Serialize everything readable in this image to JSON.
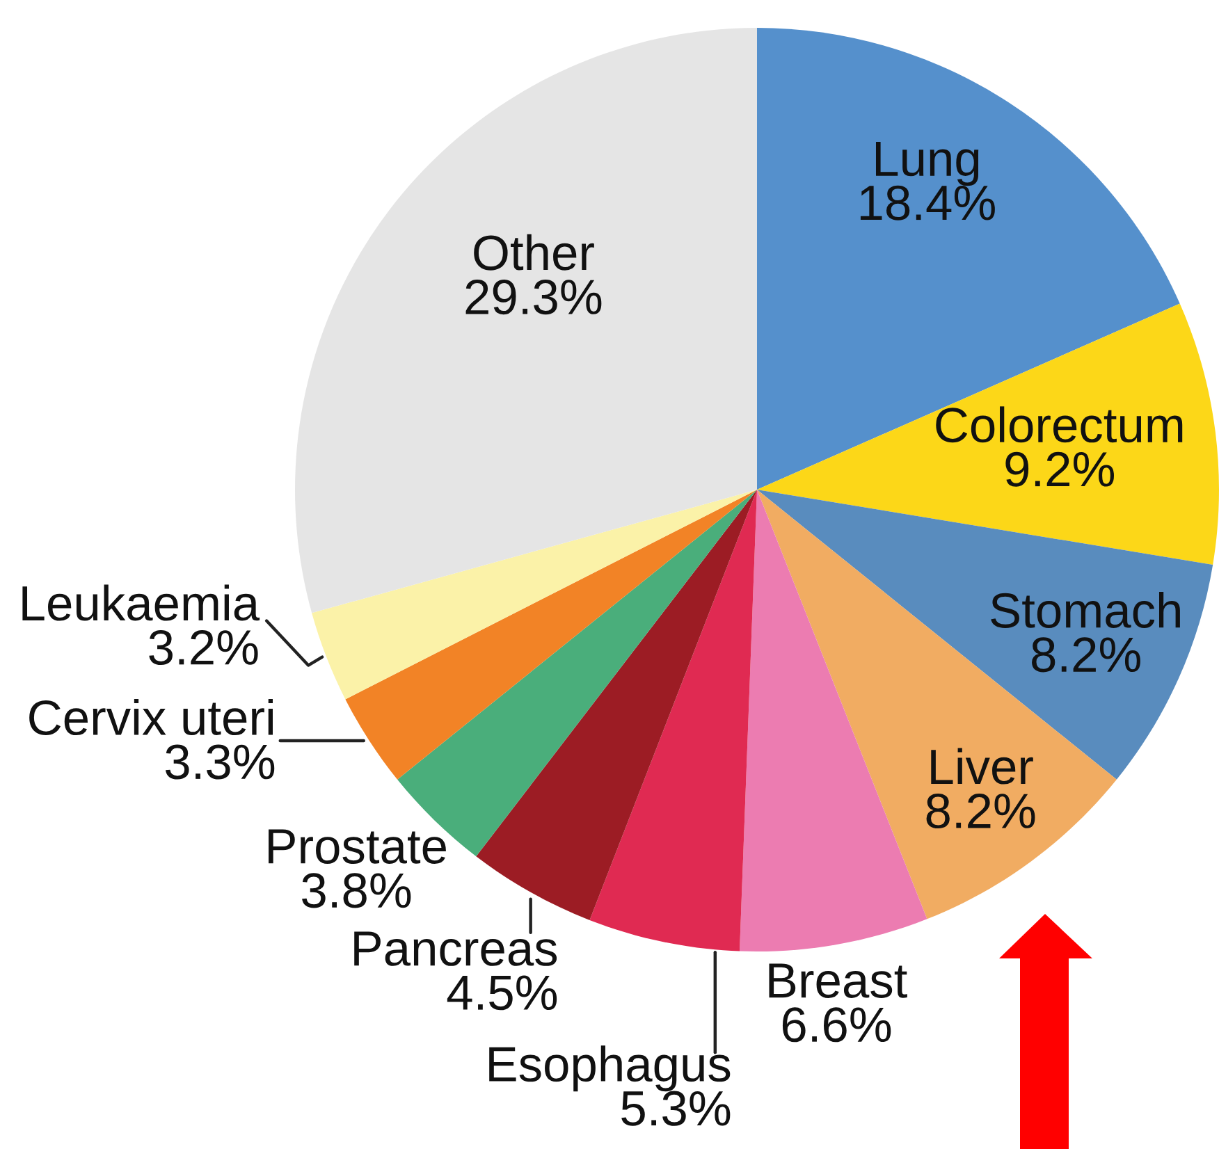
{
  "chart_data": {
    "type": "pie",
    "categories": [
      "Lung",
      "Colorectum",
      "Stomach",
      "Liver",
      "Breast",
      "Esophagus",
      "Pancreas",
      "Prostate",
      "Cervix uteri",
      "Leukaemia",
      "Other"
    ],
    "values": [
      18.4,
      9.2,
      8.2,
      8.2,
      6.6,
      5.3,
      4.5,
      3.8,
      3.3,
      3.2,
      29.3
    ],
    "value_labels": [
      "18.4%",
      "9.2%",
      "8.2%",
      "8.2%",
      "6.6%",
      "5.3%",
      "4.5%",
      "3.8%",
      "3.3%",
      "3.2%",
      "29.3%"
    ],
    "colors": [
      "#5590cc",
      "#fcd718",
      "#598cbe",
      "#f1ac62",
      "#ec7cb1",
      "#e02a52",
      "#9c1c24",
      "#4aae7b",
      "#f28326",
      "#fbf2a8",
      "#e5e5e5"
    ]
  }
}
